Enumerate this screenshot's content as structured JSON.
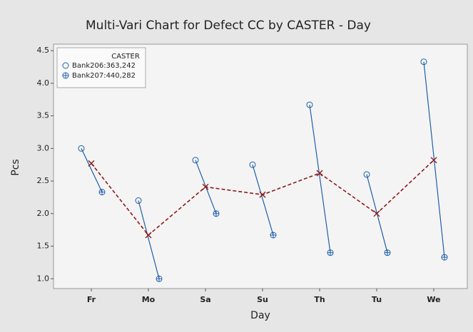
{
  "chart_data": {
    "type": "multi-vari",
    "title": "Multi-Vari Chart for Defect CC  by CASTER - Day",
    "x_label": "Day",
    "y_label": "Pcs",
    "legend_title": "CASTER",
    "legend": "upper left",
    "categories": [
      "Fr",
      "Mo",
      "Sa",
      "Su",
      "Th",
      "Tu",
      "We"
    ],
    "series": [
      {
        "name": "Bank206:363,242",
        "color": "#1f5fa8",
        "marker": "circle",
        "values": [
          3.0,
          2.2,
          2.82,
          2.75,
          3.67,
          2.6,
          4.33
        ]
      },
      {
        "name": "Bank207:440,282",
        "color": "#1f5fa8",
        "marker": "crossed-circle",
        "values": [
          2.33,
          1.0,
          2.0,
          1.67,
          1.4,
          1.4,
          1.33
        ]
      }
    ],
    "means": {
      "color": "#8b1a1a",
      "values": [
        2.77,
        1.67,
        2.41,
        2.29,
        2.62,
        2.0,
        2.82
      ]
    },
    "ylim": [
      0.85,
      4.6
    ],
    "yticks": [
      {
        "value": 1,
        "label": "1.0"
      },
      1.5,
      {
        "value": 2,
        "label": "2.0"
      },
      2.5,
      {
        "value": 3,
        "label": "3.0"
      },
      3.5,
      {
        "value": 4,
        "label": "4.0"
      },
      4.5
    ]
  }
}
